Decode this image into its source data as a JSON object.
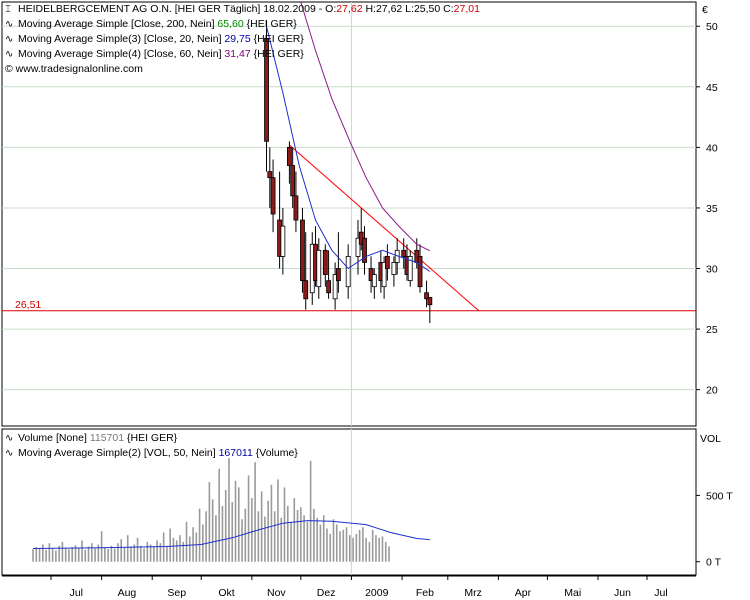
{
  "header": {
    "title": "HEIDELBERGCEMENT AG O.N. [HEI GER  Täglich]",
    "date": "18.02.2009",
    "open_label": "O:",
    "open": "27,62",
    "high_label": "H:",
    "high": "27,62",
    "low_label": "L:",
    "low": "25,50",
    "close_label": "C:",
    "close": "27,01",
    "currency": "€"
  },
  "legend_price": [
    {
      "label": "Moving Average Simple [Close, 200, Nein]",
      "value": "65,60",
      "suffix": "{HEI GER}",
      "color": "#008800"
    },
    {
      "label": "Moving Average Simple(3) [Close, 20, Nein]",
      "value": "29,75",
      "suffix": "{HEI GER}",
      "color": "#0000aa"
    },
    {
      "label": "Moving Average Simple(4) [Close, 60, Nein]",
      "value": "31,47",
      "suffix": "{HEI GER}",
      "color": "#800080"
    }
  ],
  "copyright": "© www.tradesignalonline.com",
  "legend_volume": [
    {
      "label": "Volume [None]",
      "value": "115701",
      "suffix": "{HEI GER}",
      "color": "#777777"
    },
    {
      "label": "Moving Average Simple(2) [VOL, 50, Nein]",
      "value": "167011",
      "suffix": "{Volume}",
      "color": "#0000aa"
    }
  ],
  "support_label": "26,51",
  "chart_data": [
    {
      "type": "line",
      "panel": "price",
      "ylim": [
        17,
        52
      ],
      "yticks": [
        20,
        25,
        30,
        35,
        40,
        45,
        50
      ],
      "ytick_labels": [
        "20",
        "25",
        "30",
        "35",
        "40",
        "45",
        "50"
      ],
      "support_level": 26.51,
      "trendline": {
        "from": [
          "2008-11-24",
          40.2
        ],
        "to": [
          "2009-03-20",
          26.51
        ]
      },
      "x_tick_labels": [
        "Jul",
        "Aug",
        "Sep",
        "Okt",
        "Nov",
        "Dez",
        "2009",
        "Feb",
        "Mrz",
        "Apr",
        "Mai",
        "Jun",
        "Jul"
      ],
      "ohlc": {
        "x": [
          "2008-11-10",
          "2008-11-12",
          "2008-11-14",
          "2008-11-18",
          "2008-11-20",
          "2008-11-24",
          "2008-11-26",
          "2008-11-28",
          "2008-12-02",
          "2008-12-04",
          "2008-12-08",
          "2008-12-10",
          "2008-12-12",
          "2008-12-16",
          "2008-12-18",
          "2008-12-22",
          "2008-12-24",
          "2008-12-30",
          "2009-01-05",
          "2009-01-07",
          "2009-01-09",
          "2009-01-13",
          "2009-01-15",
          "2009-01-19",
          "2009-01-21",
          "2009-01-23",
          "2009-01-27",
          "2009-01-29",
          "2009-02-02",
          "2009-02-04",
          "2009-02-06",
          "2009-02-10",
          "2009-02-12",
          "2009-02-16",
          "2009-02-18"
        ],
        "open": [
          49.0,
          38.0,
          37.5,
          34.0,
          31.0,
          40.0,
          38.5,
          36.0,
          34.0,
          29.0,
          28.0,
          32.0,
          28.5,
          31.5,
          29.0,
          27.5,
          30.0,
          28.5,
          31.0,
          33.0,
          32.5,
          30.0,
          28.5,
          30.5,
          28.5,
          31.0,
          29.5,
          30.5,
          31.5,
          31.0,
          29.0,
          31.5,
          31.0,
          28.0,
          27.62
        ],
        "high": [
          50.5,
          40.0,
          39.0,
          38.0,
          35.0,
          40.5,
          40.0,
          38.0,
          35.0,
          33.0,
          33.0,
          33.5,
          32.5,
          32.0,
          31.5,
          30.5,
          33.0,
          32.0,
          34.0,
          35.0,
          33.5,
          31.0,
          30.0,
          31.5,
          31.0,
          32.0,
          31.0,
          32.5,
          32.5,
          32.0,
          31.5,
          32.5,
          32.0,
          29.0,
          27.62
        ],
        "low": [
          38.0,
          35.0,
          33.0,
          30.0,
          29.5,
          37.0,
          35.0,
          33.0,
          28.0,
          26.6,
          27.0,
          28.5,
          27.5,
          28.5,
          27.5,
          26.6,
          28.0,
          27.5,
          29.5,
          31.5,
          29.5,
          28.0,
          27.5,
          28.0,
          27.5,
          29.0,
          28.5,
          29.5,
          30.0,
          29.0,
          28.5,
          30.0,
          28.0,
          26.8,
          25.5
        ],
        "close": [
          40.5,
          37.5,
          34.5,
          31.0,
          33.5,
          38.5,
          36.0,
          34.0,
          29.0,
          27.5,
          32.0,
          29.0,
          31.5,
          29.5,
          28.0,
          29.5,
          29.0,
          31.0,
          32.5,
          32.0,
          30.5,
          29.0,
          29.5,
          29.0,
          30.5,
          30.0,
          30.5,
          31.5,
          31.0,
          29.5,
          31.0,
          30.5,
          28.5,
          27.5,
          27.01
        ]
      },
      "series": [
        {
          "name": "Moving Average Simple(3) [Close, 20, Nein]",
          "color": "#1f2fcf",
          "x": [
            "2008-11-10",
            "2008-11-20",
            "2008-11-30",
            "2008-12-10",
            "2008-12-20",
            "2008-12-30",
            "2009-01-10",
            "2009-01-20",
            "2009-01-30",
            "2009-02-10",
            "2009-02-18"
          ],
          "values": [
            50.0,
            44.5,
            38.5,
            34.0,
            31.5,
            30.0,
            31.0,
            31.5,
            31.0,
            30.5,
            29.75
          ]
        },
        {
          "name": "Moving Average Simple(4) [Close, 60, Nein]",
          "color": "#8b1a8b",
          "x": [
            "2008-12-01",
            "2008-12-10",
            "2008-12-20",
            "2008-12-31",
            "2009-01-10",
            "2009-01-20",
            "2009-01-30",
            "2009-02-10",
            "2009-02-18"
          ],
          "values": [
            52.0,
            48.0,
            44.0,
            40.5,
            37.5,
            35.0,
            33.5,
            32.0,
            31.47
          ]
        }
      ]
    },
    {
      "type": "bar",
      "panel": "volume",
      "ylim": [
        -100,
        1000
      ],
      "yticks": [
        0,
        500
      ],
      "ytick_labels": [
        "0 T",
        "500 T"
      ],
      "axis_title": "VOL",
      "volume_start": "2008-06-20",
      "volume_end": "2009-02-18",
      "volume_step_days": 2,
      "volume_values_thousands": [
        95,
        110,
        100,
        130,
        90,
        140,
        100,
        85,
        120,
        150,
        105,
        95,
        110,
        125,
        100,
        160,
        90,
        115,
        140,
        100,
        130,
        230,
        110,
        95,
        120,
        100,
        140,
        170,
        105,
        200,
        115,
        130,
        180,
        120,
        100,
        150,
        130,
        115,
        160,
        140,
        220,
        120,
        250,
        180,
        160,
        200,
        150,
        300,
        190,
        260,
        220,
        400,
        280,
        380,
        600,
        470,
        350,
        700,
        420,
        540,
        780,
        450,
        610,
        560,
        320,
        400,
        650,
        480,
        750,
        380,
        530,
        340,
        460,
        580,
        380,
        620,
        330,
        560,
        420,
        300,
        480,
        390,
        410,
        350,
        300,
        760,
        400,
        330,
        280,
        350,
        250,
        210,
        320,
        280,
        230,
        240,
        260,
        200,
        180,
        210,
        240,
        260,
        180,
        150,
        240,
        200,
        180,
        190,
        150,
        116
      ],
      "ma_x": [
        "2008-06-20",
        "2008-08-01",
        "2008-09-10",
        "2008-10-01",
        "2008-10-20",
        "2008-11-05",
        "2008-11-20",
        "2008-12-05",
        "2008-12-20",
        "2009-01-10",
        "2009-01-25",
        "2009-02-10",
        "2009-02-18"
      ],
      "ma_values_thousands": [
        100,
        105,
        115,
        130,
        180,
        240,
        290,
        310,
        305,
        280,
        220,
        175,
        167
      ]
    }
  ]
}
